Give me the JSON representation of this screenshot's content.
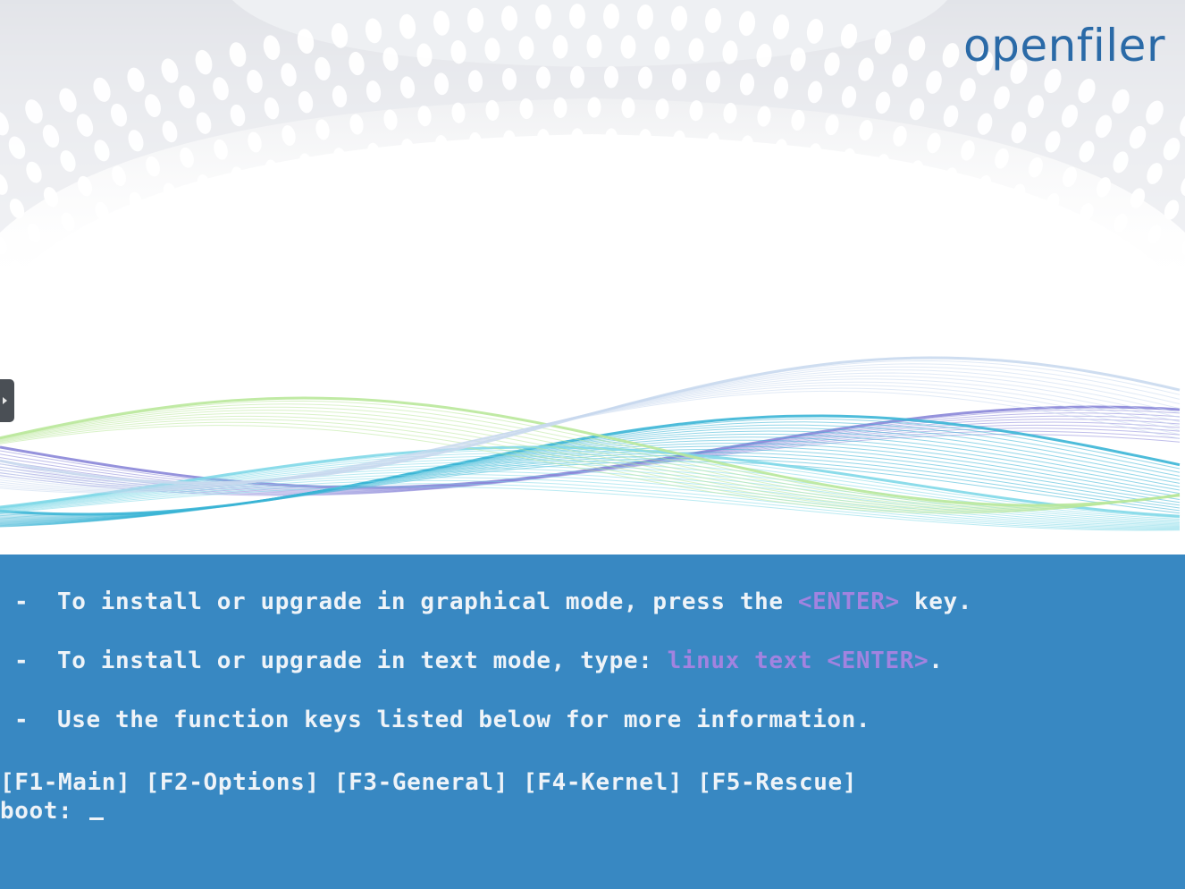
{
  "brand": {
    "logo_text": "openfiler"
  },
  "instructions": [
    {
      "dash": "-",
      "before": "To install or upgrade in graphical mode, press the ",
      "highlight": "<ENTER>",
      "after": " key."
    },
    {
      "dash": "-",
      "before": "To install or upgrade in text mode, type: ",
      "highlight": "linux text <ENTER>",
      "after": "."
    },
    {
      "dash": "-",
      "before": "Use the function keys listed below for more information.",
      "highlight": "",
      "after": ""
    }
  ],
  "function_keys": [
    "[F1-Main]",
    "[F2-Options]",
    "[F3-General]",
    "[F4-Kernel]",
    "[F5-Rescue]"
  ],
  "prompt": {
    "label": "boot:",
    "value": ""
  },
  "colors": {
    "console_bg": "#3888c2",
    "console_text": "#eef3f8",
    "highlight": "#a283e0",
    "logo": "#2a6aa7"
  }
}
